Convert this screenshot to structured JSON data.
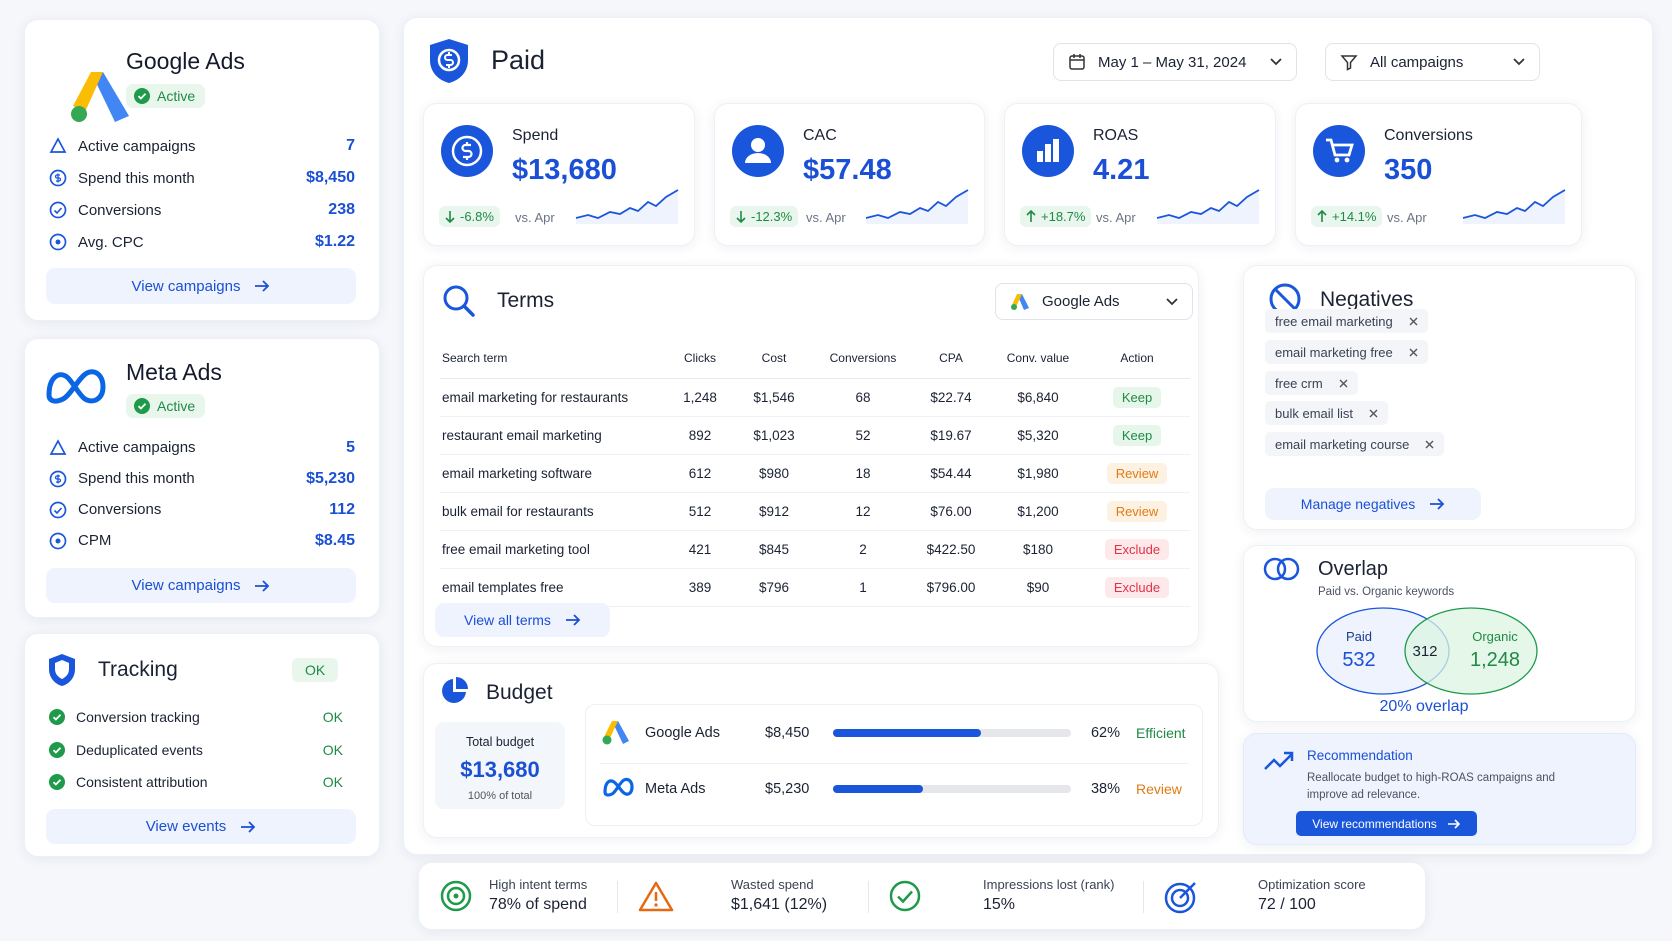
{
  "google_ads": {
    "name": "Google Ads",
    "status": "Active",
    "metrics": [
      {
        "label": "Active campaigns",
        "value": "7"
      },
      {
        "label": "Spend this month",
        "value": "$8,450"
      },
      {
        "label": "Conversions",
        "value": "238"
      },
      {
        "label": "Avg. CPC",
        "value": "$1.22"
      }
    ],
    "link": "View campaigns"
  },
  "meta_ads": {
    "name": "Meta Ads",
    "status": "Active",
    "metrics": [
      {
        "label": "Active campaigns",
        "value": "5"
      },
      {
        "label": "Spend this month",
        "value": "$5,230"
      },
      {
        "label": "Conversions",
        "value": "112"
      },
      {
        "label": "CPM",
        "value": "$8.45"
      }
    ],
    "link": "View campaigns"
  },
  "tracking": {
    "title": "Tracking",
    "status": "OK",
    "items": [
      {
        "label": "Conversion tracking",
        "status": "OK"
      },
      {
        "label": "Deduplicated events",
        "status": "OK"
      },
      {
        "label": "Consistent attribution",
        "status": "OK"
      }
    ],
    "link": "View events"
  },
  "header": {
    "title": "Paid",
    "date_range": "May 1 – May 31, 2024",
    "filter": "All campaigns"
  },
  "kpis": [
    {
      "label": "Spend",
      "value": "$13,680",
      "change": "-6.8%",
      "compare": "vs. Apr"
    },
    {
      "label": "CAC",
      "value": "$57.48",
      "change": "-12.3%",
      "compare": "vs. Apr"
    },
    {
      "label": "ROAS",
      "value": "4.21",
      "change": "+18.7%",
      "compare": "vs. Apr"
    },
    {
      "label": "Conversions",
      "value": "350",
      "change": "+14.1%",
      "compare": "vs. Apr"
    }
  ],
  "terms": {
    "title": "Terms",
    "source": "Google Ads",
    "columns": [
      "Search term",
      "Clicks",
      "Cost",
      "Conversions",
      "CPA",
      "Conv. value",
      "Action"
    ],
    "rows": [
      [
        "email marketing for restaurants",
        "1,248",
        "$1,546",
        "68",
        "$22.74",
        "$6,840",
        "Keep"
      ],
      [
        "restaurant email marketing",
        "892",
        "$1,023",
        "52",
        "$19.67",
        "$5,320",
        "Keep"
      ],
      [
        "email marketing software",
        "612",
        "$980",
        "18",
        "$54.44",
        "$1,980",
        "Review"
      ],
      [
        "bulk email for restaurants",
        "512",
        "$912",
        "12",
        "$76.00",
        "$1,200",
        "Review"
      ],
      [
        "free email marketing tool",
        "421",
        "$845",
        "2",
        "$422.50",
        "$180",
        "Exclude"
      ],
      [
        "email templates free",
        "389",
        "$796",
        "1",
        "$796.00",
        "$90",
        "Exclude"
      ]
    ],
    "link": "View all terms"
  },
  "budget": {
    "title": "Budget",
    "total_label": "Total budget",
    "total": "$13,680",
    "total_note": "100% of total",
    "channels": [
      {
        "name": "Google Ads",
        "amount": "$8,450",
        "share": {
          "value": 62,
          "label": "62%"
        },
        "status": "Efficient"
      },
      {
        "name": "Meta Ads",
        "amount": "$5,230",
        "share": {
          "value": 38,
          "label": "38%"
        },
        "status": "Review"
      }
    ]
  },
  "negatives": {
    "title": "Negatives",
    "keywords": [
      "free email marketing",
      "email marketing free",
      "free crm",
      "bulk email list",
      "email marketing course"
    ],
    "link": "Manage negatives"
  },
  "overlap": {
    "title": "Overlap",
    "subtitle": "Paid vs. Organic keywords",
    "paid_label": "Paid",
    "paid": "532",
    "organic_label": "Organic",
    "organic": "1,248",
    "shared": "312",
    "summary": "20% overlap"
  },
  "recommendation": {
    "title": "Recommendation",
    "text": "Reallocate budget to high-ROAS campaigns and improve ad relevance.",
    "button": "View recommendations"
  },
  "insights": [
    {
      "label": "High intent terms",
      "value": "78% of spend"
    },
    {
      "label": "Wasted spend",
      "value": "$1,641 (12%)"
    },
    {
      "label": "Impressions lost (rank)",
      "value": "15%"
    },
    {
      "label": "Optimization score",
      "value": "72 / 100"
    }
  ]
}
